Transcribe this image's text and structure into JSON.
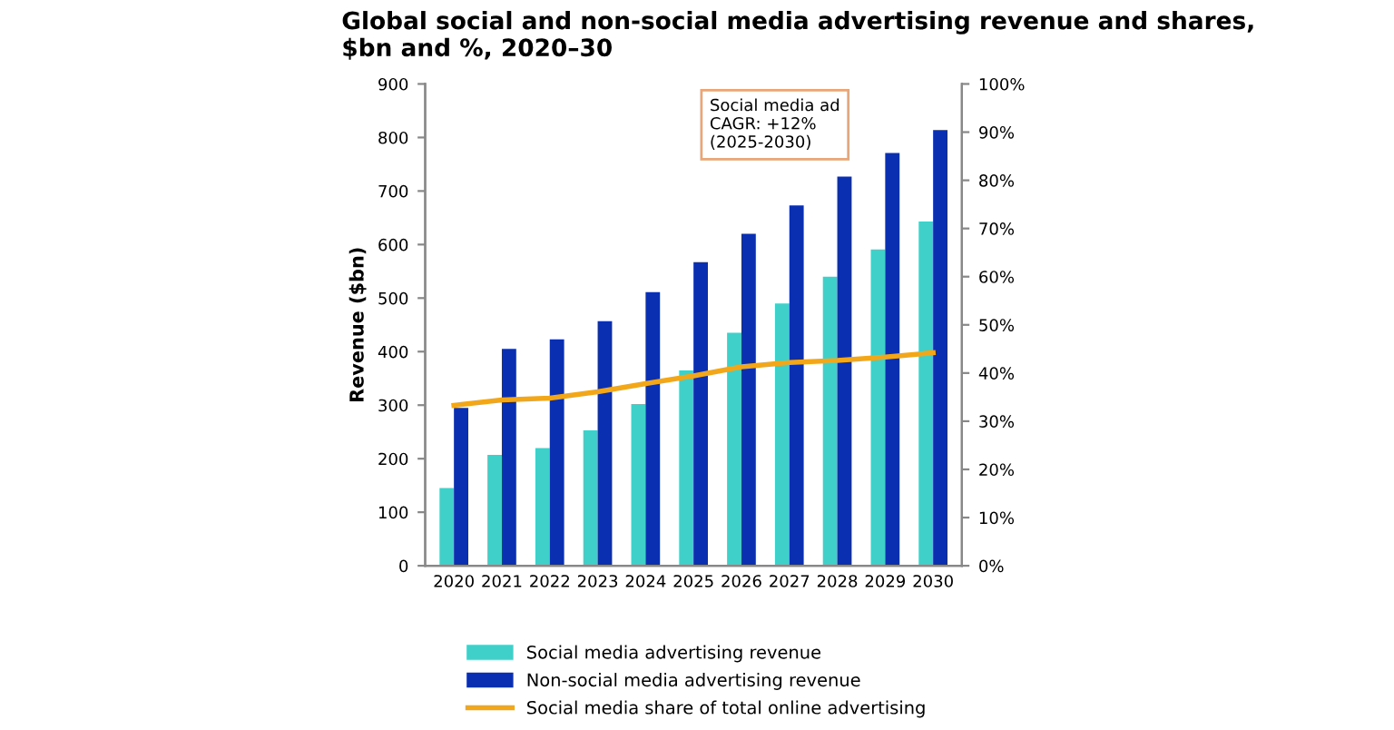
{
  "chart_data": {
    "type": "bar",
    "title": "Global social and non-social media advertising revenue and shares,\n$bn and %, 2020–30",
    "ylabel": "Revenue ($bn)",
    "categories": [
      "2020",
      "2021",
      "2022",
      "2023",
      "2024",
      "2025",
      "2026",
      "2027",
      "2028",
      "2029",
      "2030"
    ],
    "series": [
      {
        "name": "Social media advertising revenue",
        "color": "#3fd0c9",
        "values": [
          145,
          207,
          220,
          253,
          302,
          365,
          435,
          490,
          540,
          591,
          643
        ]
      },
      {
        "name": "Non-social media advertising revenue",
        "color": "#0a2fb0",
        "values": [
          295,
          405,
          423,
          457,
          511,
          567,
          620,
          673,
          727,
          771,
          814
        ]
      },
      {
        "name": "Social media share of total online advertising",
        "type": "line",
        "axis": "y2",
        "color": "#f2a71b",
        "values": [
          33.3,
          34.4,
          34.8,
          36.1,
          37.8,
          39.4,
          41.3,
          42.2,
          42.6,
          43.3,
          44.2
        ]
      }
    ],
    "ylim": [
      0,
      900
    ],
    "yticks": [
      0,
      100,
      200,
      300,
      400,
      500,
      600,
      700,
      800,
      900
    ],
    "y2lim": [
      0,
      100
    ],
    "y2ticks": [
      {
        "value": 0,
        "label": "0%"
      },
      {
        "value": 10,
        "label": "10%"
      },
      {
        "value": 20,
        "label": "20%"
      },
      {
        "value": 30,
        "label": "30%"
      },
      {
        "value": 40,
        "label": "40%"
      },
      {
        "value": 50,
        "label": "50%"
      },
      {
        "value": 60,
        "label": "60%"
      },
      {
        "value": 70,
        "label": "70%"
      },
      {
        "value": 80,
        "label": "80%"
      },
      {
        "value": 90,
        "label": "90%"
      },
      {
        "value": 100,
        "label": "100%"
      }
    ],
    "annotations": [
      "Social media ad\nCAGR: +12%\n(2025-2030)"
    ],
    "legend": "bottom",
    "grid": false,
    "marker": "none",
    "line_style": "solid"
  }
}
